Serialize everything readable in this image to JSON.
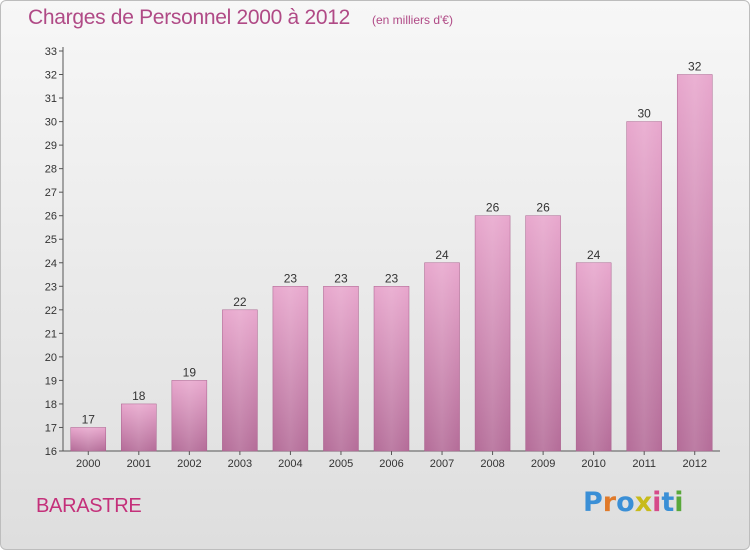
{
  "title": "Charges de Personnel 2000 à 2012",
  "subtitle": "(en milliers d'€)",
  "commune": "BARASTRE",
  "brand": {
    "text": "Proxiti",
    "letter_colors": [
      "#3a8fd6",
      "#e07a2a",
      "#3a8fd6",
      "#c8bb1a",
      "#d64a8a",
      "#3a8fd6",
      "#59a83a"
    ]
  },
  "colors": {
    "bar_top": "#e8a7cd",
    "bar_bottom": "#b46c98",
    "title": "#b04a86",
    "commune": "#c4307a"
  },
  "chart_data": {
    "type": "bar",
    "categories": [
      "2000",
      "2001",
      "2002",
      "2003",
      "2004",
      "2005",
      "2006",
      "2007",
      "2008",
      "2009",
      "2010",
      "2011",
      "2012"
    ],
    "values": [
      17,
      18,
      19,
      22,
      23,
      23,
      23,
      24,
      26,
      26,
      24,
      30,
      32
    ],
    "ylim": [
      16,
      33
    ],
    "yticks": [
      16,
      17,
      18,
      19,
      20,
      21,
      22,
      23,
      24,
      25,
      26,
      27,
      28,
      29,
      30,
      31,
      32,
      33
    ],
    "title": "Charges de Personnel 2000 à 2012",
    "xlabel": "",
    "ylabel": "",
    "grid": false,
    "legend": "none"
  }
}
